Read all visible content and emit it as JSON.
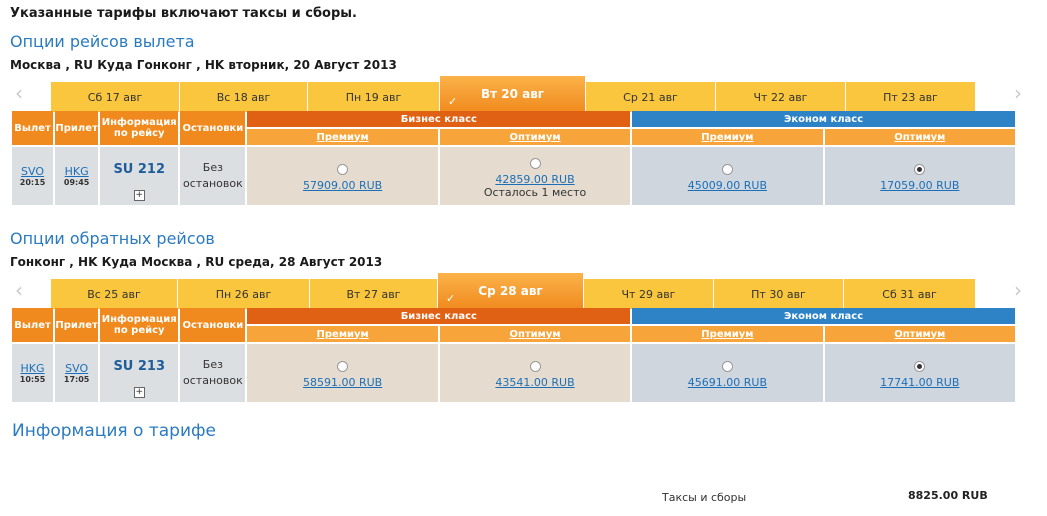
{
  "notice": "Указанные тарифы включают таксы и сборы.",
  "outbound": {
    "title": "Опции рейсов вылета",
    "route": "Москва , RU Куда Гонконг , HK вторник, 20 Август 2013",
    "dates": [
      "Сб 17 авг",
      "Вс 18 авг",
      "Пн 19 авг",
      "Вт 20 авг",
      "Ср 21 авг",
      "Чт 22 авг",
      "Пт 23 авг"
    ],
    "selected_index": 3,
    "headers": {
      "departure": "Вылет",
      "arrival": "Прилет",
      "info": "Информация по рейсу",
      "stops": "Остановки",
      "business": "Бизнес класс",
      "economy": "Эконом класс",
      "premium": "Премиум",
      "optimum": "Оптимум"
    },
    "flight": {
      "from_code": "SVO",
      "from_time": "20:15",
      "to_code": "HKG",
      "to_time": "09:45",
      "number": "SU 212",
      "stops": "Без остановок",
      "details": "+",
      "fares": [
        {
          "price": "57909.00 RUB",
          "note": "",
          "selected": false
        },
        {
          "price": "42859.00 RUB",
          "note": "Осталось 1 место",
          "selected": false
        },
        {
          "price": "45009.00 RUB",
          "note": "",
          "selected": false
        },
        {
          "price": "17059.00 RUB",
          "note": "",
          "selected": true
        }
      ]
    }
  },
  "inbound": {
    "title": "Опции обратных рейсов",
    "route": "Гонконг , HK Куда Москва , RU среда, 28 Август 2013",
    "dates": [
      "Вс 25 авг",
      "Пн 26 авг",
      "Вт 27 авг",
      "Ср 28 авг",
      "Чт 29 авг",
      "Пт 30 авг",
      "Сб 31 авг"
    ],
    "selected_index": 3,
    "headers": {
      "departure": "Вылет",
      "arrival": "Прилет",
      "info": "Информация по рейсу",
      "stops": "Остановки",
      "business": "Бизнес класс",
      "economy": "Эконом класс",
      "premium": "Премиум",
      "optimum": "Оптимум"
    },
    "flight": {
      "from_code": "HKG",
      "from_time": "10:55",
      "to_code": "SVO",
      "to_time": "17:05",
      "number": "SU 213",
      "stops": "Без остановок",
      "details": "+",
      "fares": [
        {
          "price": "58591.00 RUB",
          "note": "",
          "selected": false
        },
        {
          "price": "43541.00 RUB",
          "note": "",
          "selected": false
        },
        {
          "price": "45691.00 RUB",
          "note": "",
          "selected": false
        },
        {
          "price": "17741.00 RUB",
          "note": "",
          "selected": true
        }
      ]
    }
  },
  "fare_info": {
    "title": "Информация о тарифе",
    "tax_label": "Таксы и сборы",
    "tax_value": "8825.00 RUB"
  },
  "colors": {
    "accent_orange": "#f08a1e",
    "business": "#e06014",
    "economy": "#2d83c6",
    "date_tab": "#f9c63d",
    "link": "#1b6fb8"
  },
  "icons": {
    "prev": "chevron-left-icon",
    "next": "chevron-right-icon",
    "selected_day": "check-icon",
    "details": "plus-icon"
  }
}
